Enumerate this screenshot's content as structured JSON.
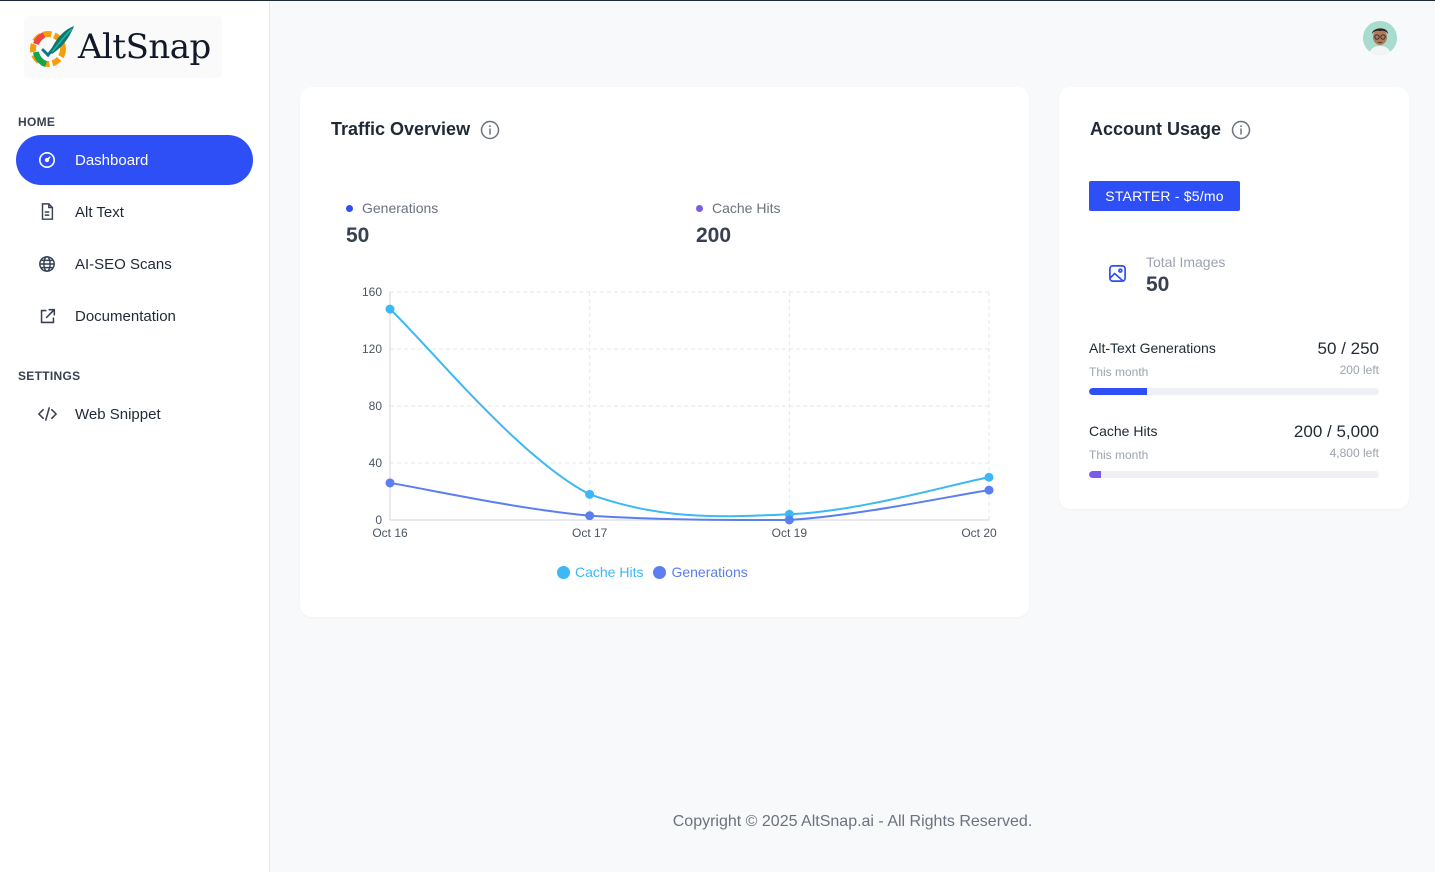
{
  "brand": {
    "name": "AltSnap"
  },
  "sidebar": {
    "sections": [
      {
        "label": "HOME"
      },
      {
        "label": "SETTINGS"
      }
    ],
    "items": [
      {
        "label": "Dashboard",
        "icon": "gauge-icon",
        "active": true
      },
      {
        "label": "Alt Text",
        "icon": "document-icon"
      },
      {
        "label": "AI-SEO Scans",
        "icon": "globe-icon"
      },
      {
        "label": "Documentation",
        "icon": "external-link-icon"
      },
      {
        "label": "Web Snippet",
        "icon": "code-icon"
      }
    ]
  },
  "header": {
    "avatar": "user-avatar"
  },
  "traffic": {
    "title": "Traffic Overview",
    "stats": [
      {
        "label": "Generations",
        "value": "50",
        "color": "#2d4ff5"
      },
      {
        "label": "Cache Hits",
        "value": "200",
        "color": "#7c5ce6"
      }
    ]
  },
  "chart_data": {
    "type": "line",
    "x": [
      "Oct 16",
      "Oct 17",
      "Oct 19",
      "Oct 20"
    ],
    "ylim": [
      0,
      160
    ],
    "yticks": [
      "0",
      "40",
      "80",
      "120",
      "160"
    ],
    "grid": true,
    "legend_position": "bottom",
    "series": [
      {
        "name": "Cache Hits",
        "values": [
          148,
          18,
          4,
          30
        ],
        "color": "#3bb8f5"
      },
      {
        "name": "Generations",
        "values": [
          26,
          3,
          0,
          21
        ],
        "color": "#5b7ef0"
      }
    ]
  },
  "usage": {
    "title": "Account Usage",
    "plan": "STARTER - $5/mo",
    "total_images_label": "Total Images",
    "total_images_value": "50",
    "rows": [
      {
        "label": "Alt-Text Generations",
        "sub": "This month",
        "value": "50 / 250",
        "left": "200 left",
        "fraction": 0.2,
        "color": "#2d4ff5"
      },
      {
        "label": "Cache Hits",
        "sub": "This month",
        "value": "200 / 5,000",
        "left": "4,800 left",
        "fraction": 0.04,
        "color": "#7c5ce6"
      }
    ]
  },
  "footer": {
    "text": "Copyright © 2025 AltSnap.ai - All Rights Reserved."
  }
}
